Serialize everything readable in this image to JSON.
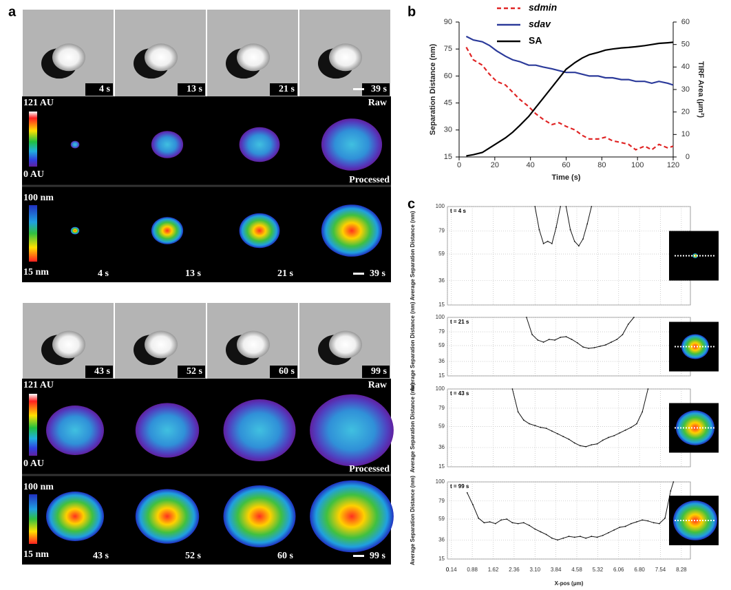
{
  "panel_labels": [
    "a",
    "b",
    "c"
  ],
  "panel_a": {
    "raw_label": "Raw",
    "processed_label": "Processed",
    "raw_scale": [
      "121 AU",
      "0 AU"
    ],
    "processed_scale": [
      "100 nm",
      "15 nm"
    ],
    "blocks": [
      {
        "times": [
          "4 s",
          "13 s",
          "21 s",
          "39 s"
        ]
      },
      {
        "times": [
          "43 s",
          "52 s",
          "60 s",
          "99 s"
        ]
      }
    ]
  },
  "chart_data": [
    {
      "type": "line",
      "xlabel": "Time (s)",
      "ylabel": "Separation  Distance (nm)",
      "y2label": "TIRF Area (μm²)",
      "x": [
        4,
        8,
        13,
        17,
        21,
        26,
        30,
        34,
        39,
        43,
        47,
        52,
        56,
        60,
        65,
        69,
        73,
        78,
        82,
        86,
        91,
        95,
        99,
        104,
        108,
        112,
        117,
        120
      ],
      "series": [
        {
          "name": "sdmin",
          "color": "#e02424",
          "dash": true,
          "values": [
            76,
            69,
            66,
            61,
            57,
            55,
            51,
            47,
            43,
            39,
            36,
            33,
            34,
            32,
            30,
            27,
            25,
            25,
            26,
            24,
            23,
            22,
            19,
            21,
            19,
            22,
            20,
            21
          ]
        },
        {
          "name": "sdav",
          "color": "#2b3a9a",
          "values": [
            82,
            80,
            79,
            77,
            74,
            71,
            69,
            68,
            66,
            66,
            65,
            64,
            63,
            62,
            62,
            61,
            60,
            60,
            59,
            59,
            58,
            58,
            57,
            57,
            56,
            57,
            56,
            55
          ]
        },
        {
          "name": "SA",
          "color": "#000000",
          "axis": "y2",
          "values": [
            0.5,
            1,
            2,
            4,
            6,
            8.5,
            11,
            14,
            18,
            22,
            26,
            31,
            35,
            39,
            42,
            44,
            45.5,
            46.5,
            47.5,
            48,
            48.5,
            48.7,
            49,
            49.5,
            50,
            50.5,
            50.8,
            51
          ]
        }
      ],
      "xlim": [
        0,
        120
      ],
      "xticks": [
        0,
        20,
        40,
        60,
        80,
        100,
        120
      ],
      "ylim": [
        15,
        90
      ],
      "yticks": [
        15,
        30,
        45,
        60,
        75,
        90
      ],
      "y2lim": [
        0,
        60
      ],
      "y2ticks": [
        0,
        10,
        20,
        30,
        40,
        50,
        60
      ],
      "grid": false
    },
    {
      "type": "line",
      "title": "t = 4 s",
      "ylabel": "Average Separation Distance (nm)",
      "color": "#111111",
      "x": [
        3.1,
        3.25,
        3.4,
        3.55,
        3.7,
        3.85,
        4.0,
        4.1,
        4.2,
        4.35,
        4.5,
        4.65,
        4.8,
        4.95,
        5.1
      ],
      "values": [
        100,
        80,
        68,
        70,
        68,
        82,
        100,
        null,
        100,
        80,
        70,
        66,
        72,
        85,
        100
      ],
      "xlim": [
        0,
        8.6
      ],
      "xticks": [
        0,
        0.14,
        0.88,
        1.62,
        2.36,
        {
          "value": 3.1,
          "label": "3.10"
        },
        3.84,
        4.58,
        5.32,
        6.06,
        {
          "value": 6.8,
          "label": "6.80"
        },
        7.54,
        8.28
      ],
      "ylim": [
        15,
        100
      ],
      "yticks": [
        15,
        36,
        59,
        79,
        100
      ],
      "grid": true
    },
    {
      "type": "line",
      "title": "t = 21 s",
      "ylabel": "Average Separation Distance (nm)",
      "color": "#111111",
      "x": [
        2.8,
        3.0,
        3.2,
        3.4,
        3.6,
        3.8,
        4.0,
        4.2,
        4.4,
        4.6,
        4.8,
        5.0,
        5.2,
        5.4,
        5.6,
        5.8,
        6.0,
        6.2,
        6.4,
        6.6
      ],
      "values": [
        100,
        75,
        67,
        64,
        68,
        67,
        71,
        72,
        68,
        63,
        57,
        55,
        56,
        58,
        60,
        64,
        68,
        75,
        90,
        100
      ],
      "xlim": [
        0,
        8.6
      ],
      "xticks": [
        0,
        0.14,
        0.88,
        1.62,
        2.36,
        {
          "value": 3.1,
          "label": "3.10"
        },
        3.84,
        4.58,
        5.32,
        6.06,
        {
          "value": 6.8,
          "label": "6.80"
        },
        7.54,
        8.28
      ],
      "ylim": [
        15,
        100
      ],
      "yticks": [
        15,
        36,
        59,
        79,
        100
      ],
      "grid": true
    },
    {
      "type": "line",
      "title": "t = 43 s",
      "ylabel": "Average Separation Distance (nm)",
      "color": "#111111",
      "x": [
        2.3,
        2.5,
        2.7,
        2.9,
        3.1,
        3.3,
        3.5,
        3.7,
        3.9,
        4.1,
        4.3,
        4.5,
        4.7,
        4.9,
        5.1,
        5.3,
        5.5,
        5.7,
        5.9,
        6.1,
        6.3,
        6.5,
        6.7,
        6.9,
        7.1
      ],
      "values": [
        100,
        75,
        66,
        62,
        60,
        58,
        57,
        54,
        51,
        48,
        45,
        41,
        38,
        37,
        39,
        40,
        44,
        47,
        49,
        52,
        55,
        58,
        62,
        75,
        100
      ],
      "xlim": [
        0,
        8.6
      ],
      "xticks": [
        0,
        0.14,
        0.88,
        1.62,
        2.36,
        {
          "value": 3.1,
          "label": "3.10"
        },
        3.84,
        4.58,
        5.32,
        6.06,
        {
          "value": 6.8,
          "label": "6.80"
        },
        7.54,
        8.28
      ],
      "ylim": [
        15,
        100
      ],
      "yticks": [
        15,
        36,
        59,
        79,
        100
      ],
      "grid": true
    },
    {
      "type": "line",
      "title": "t = 99 s",
      "ylabel": "Average Separation Distance (nm)",
      "xlabel": "X-pos (μm)",
      "color": "#111111",
      "x": [
        0.7,
        0.9,
        1.1,
        1.3,
        1.5,
        1.7,
        1.9,
        2.1,
        2.3,
        2.5,
        2.7,
        2.9,
        3.1,
        3.3,
        3.5,
        3.7,
        3.9,
        4.1,
        4.3,
        4.5,
        4.7,
        4.9,
        5.1,
        5.3,
        5.5,
        5.7,
        5.9,
        6.1,
        6.3,
        6.5,
        6.7,
        6.9,
        7.1,
        7.3,
        7.5,
        7.7,
        7.9,
        8.0
      ],
      "values": [
        88,
        75,
        60,
        55,
        56,
        54,
        58,
        59,
        55,
        54,
        55,
        52,
        48,
        45,
        42,
        38,
        36,
        38,
        40,
        39,
        40,
        38,
        40,
        39,
        41,
        44,
        47,
        50,
        51,
        54,
        56,
        58,
        57,
        55,
        54,
        60,
        90,
        100
      ],
      "xlim": [
        0,
        8.6
      ],
      "xticks": [
        0,
        0.14,
        0.88,
        1.62,
        2.36,
        {
          "value": 3.1,
          "label": "3.10"
        },
        3.84,
        4.58,
        5.32,
        6.06,
        {
          "value": 6.8,
          "label": "6.80"
        },
        7.54,
        8.28
      ],
      "ylim": [
        15,
        100
      ],
      "yticks": [
        15,
        36,
        59,
        79,
        100
      ],
      "grid": true
    }
  ]
}
